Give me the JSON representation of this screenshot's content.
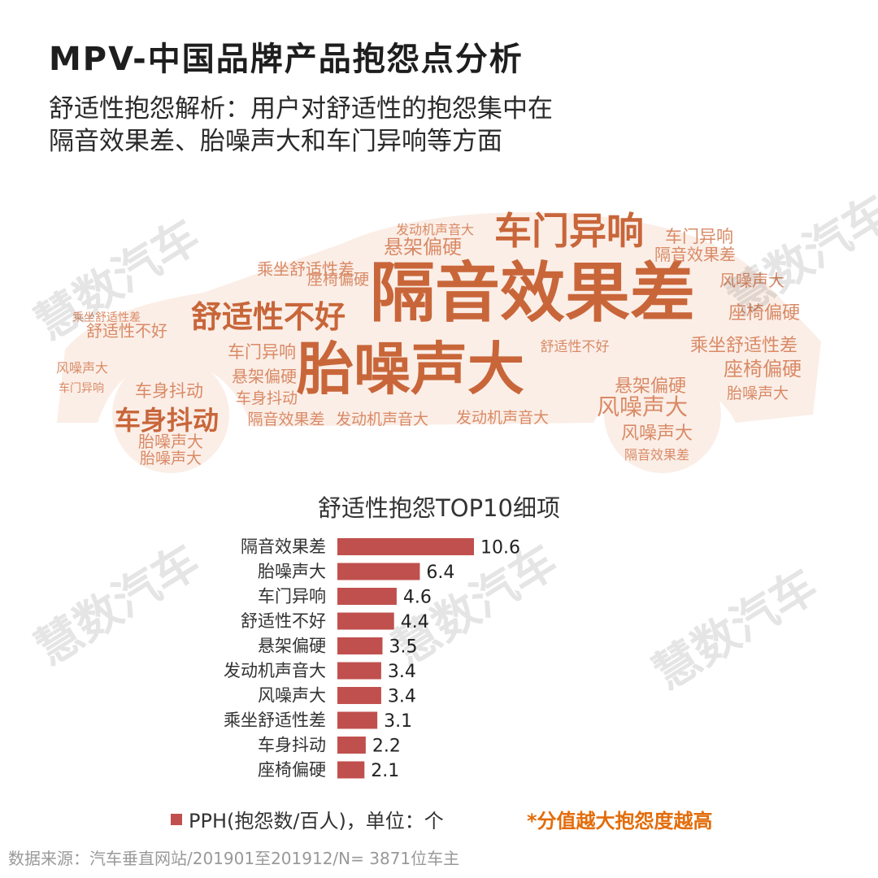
{
  "title": "MPV-中国品牌产品抱怨点分析",
  "subtitle_line1": "舒适性抱怨解析：用户对舒适性的抱怨集中在",
  "subtitle_line2": "隔音效果差、胎噪声大和车门异响等方面",
  "watermark": "慧数汽车",
  "word_cloud_words": [
    "隔音效果差",
    "胎噪声大",
    "车门异响",
    "舒适性不好",
    "悬架偏硬",
    "座椅偏硬",
    "风噪声大",
    "车身抖动",
    "乘坐舒适性差",
    "发动机声音大",
    "舒适性不好",
    "隔音效果差",
    "风噪声大",
    "车身抖动",
    "胎噪声大",
    "车门异响",
    "座椅偏硬",
    "悬架偏硬",
    "乘坐舒适性差",
    "发动机声音大",
    "隔音效果差",
    "胎噪声大",
    "车门异响",
    "风噪声大",
    "悬架偏硬",
    "车身抖动",
    "发动机声音大",
    "座椅偏硬",
    "胎噪声大",
    "舒适性不好",
    "乘坐舒适性差",
    "风噪声大",
    "隔音效果差",
    "车门异响"
  ],
  "colors": {
    "bar": "#c0504d",
    "note": "#e36c0a",
    "cloud_dark": "#c8663a",
    "cloud_light": "#d98a66"
  },
  "chart_data": {
    "type": "bar",
    "orientation": "horizontal",
    "title": "舒适性抱怨TOP10细项",
    "categories": [
      "隔音效果差",
      "胎噪声大",
      "车门异响",
      "舒适性不好",
      "悬架偏硬",
      "发动机声音大",
      "风噪声大",
      "乘坐舒适性差",
      "车身抖动",
      "座椅偏硬"
    ],
    "series": [
      {
        "name": "PPH(抱怨数/百人)，单位：个",
        "values": [
          10.6,
          6.4,
          4.6,
          4.4,
          3.5,
          3.4,
          3.4,
          3.1,
          2.2,
          2.1
        ]
      }
    ],
    "value_labels": [
      "10.6",
      "6.4",
      "4.6",
      "4.4",
      "3.5",
      "3.4",
      "3.4",
      "3.1",
      "2.2",
      "2.1"
    ],
    "xlim": [
      0,
      11
    ],
    "grid": false,
    "legend_position": "bottom-left"
  },
  "legend_label": "PPH(抱怨数/百人)，单位：个",
  "note": "*分值越大抱怨度越高",
  "source": "数据来源：汽车垂直网站/201901至201912/N= 3871位车主"
}
